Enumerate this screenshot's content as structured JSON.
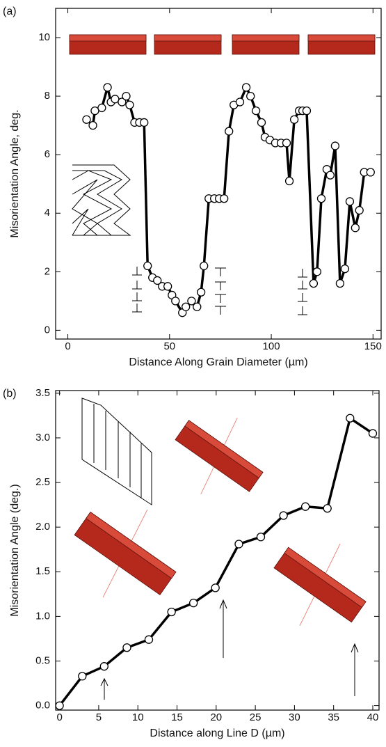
{
  "chart_data": [
    {
      "type": "line",
      "panel_label": "(a)",
      "x_label": "Distance Along Grain Diameter (µm)",
      "y_label": "Misorientation Angle, deg.",
      "x": [
        9.2,
        12.3,
        13.3,
        16.7,
        19.5,
        21.2,
        23.2,
        26.6,
        28.7,
        30.4,
        32.8,
        35.2,
        37.5,
        39.2,
        41.6,
        44.0,
        46.4,
        49.1,
        51.2,
        52.9,
        56.3,
        58.0,
        60.8,
        63.5,
        65.5,
        66.9,
        69.3,
        72.0,
        74.4,
        76.8,
        79.2,
        81.6,
        84.6,
        87.7,
        89.8,
        92.5,
        95.2,
        96.9,
        99.3,
        102.0,
        104.8,
        107.5,
        108.9,
        111.3,
        113.7,
        115.4,
        117.4,
        120.8,
        122.5,
        124.6,
        127.3,
        129.0,
        131.4,
        133.8,
        136.2,
        138.6,
        141.3,
        143.3,
        145.7,
        148.8
      ],
      "values": [
        7.2,
        7.0,
        7.5,
        7.6,
        8.3,
        7.8,
        7.9,
        7.8,
        8.0,
        7.7,
        7.1,
        7.1,
        7.1,
        2.2,
        1.8,
        1.7,
        1.5,
        1.5,
        1.2,
        1.0,
        0.6,
        0.8,
        1.0,
        0.8,
        1.3,
        2.2,
        4.5,
        4.5,
        4.5,
        4.5,
        6.8,
        7.7,
        7.8,
        8.3,
        8.0,
        7.5,
        7.1,
        6.6,
        6.5,
        6.4,
        6.4,
        6.4,
        5.1,
        7.2,
        7.5,
        7.5,
        7.5,
        1.6,
        2.0,
        4.5,
        5.5,
        5.3,
        6.3,
        1.6,
        2.1,
        4.4,
        3.5,
        4.1,
        5.4,
        5.4
      ],
      "color": "#000000",
      "xlim": [
        -6,
        154
      ],
      "ylim": [
        -0.3,
        11
      ],
      "xticks": [
        0,
        50,
        100,
        150
      ],
      "yticks": [
        0,
        2,
        4,
        6,
        8,
        10
      ]
    },
    {
      "type": "line",
      "panel_label": "(b)",
      "x_label": "Distance along Line D (µm)",
      "y_label": "Misorientation Angle (deg.)",
      "x": [
        0,
        2.9,
        5.7,
        8.6,
        11.4,
        14.3,
        17.1,
        19.9,
        22.9,
        25.7,
        28.6,
        31.4,
        34.2,
        37.1,
        40.0
      ],
      "values": [
        0.0,
        0.33,
        0.44,
        0.65,
        0.74,
        1.05,
        1.15,
        1.32,
        1.81,
        1.89,
        2.13,
        2.23,
        2.21,
        3.22,
        3.05
      ],
      "color": "#000000",
      "xlim": [
        -0.5,
        40.8
      ],
      "ylim": [
        -0.05,
        3.53
      ],
      "xticks": [
        0,
        5,
        10,
        15,
        20,
        25,
        30,
        35,
        40
      ],
      "yticks": [
        {
          "value": 0,
          "label": "0.0"
        },
        0.5,
        {
          "value": 1,
          "label": "1.0"
        },
        1.5,
        {
          "value": 2,
          "label": "2.0"
        },
        2.5,
        {
          "value": 3,
          "label": "3.0"
        },
        3.5
      ]
    }
  ]
}
